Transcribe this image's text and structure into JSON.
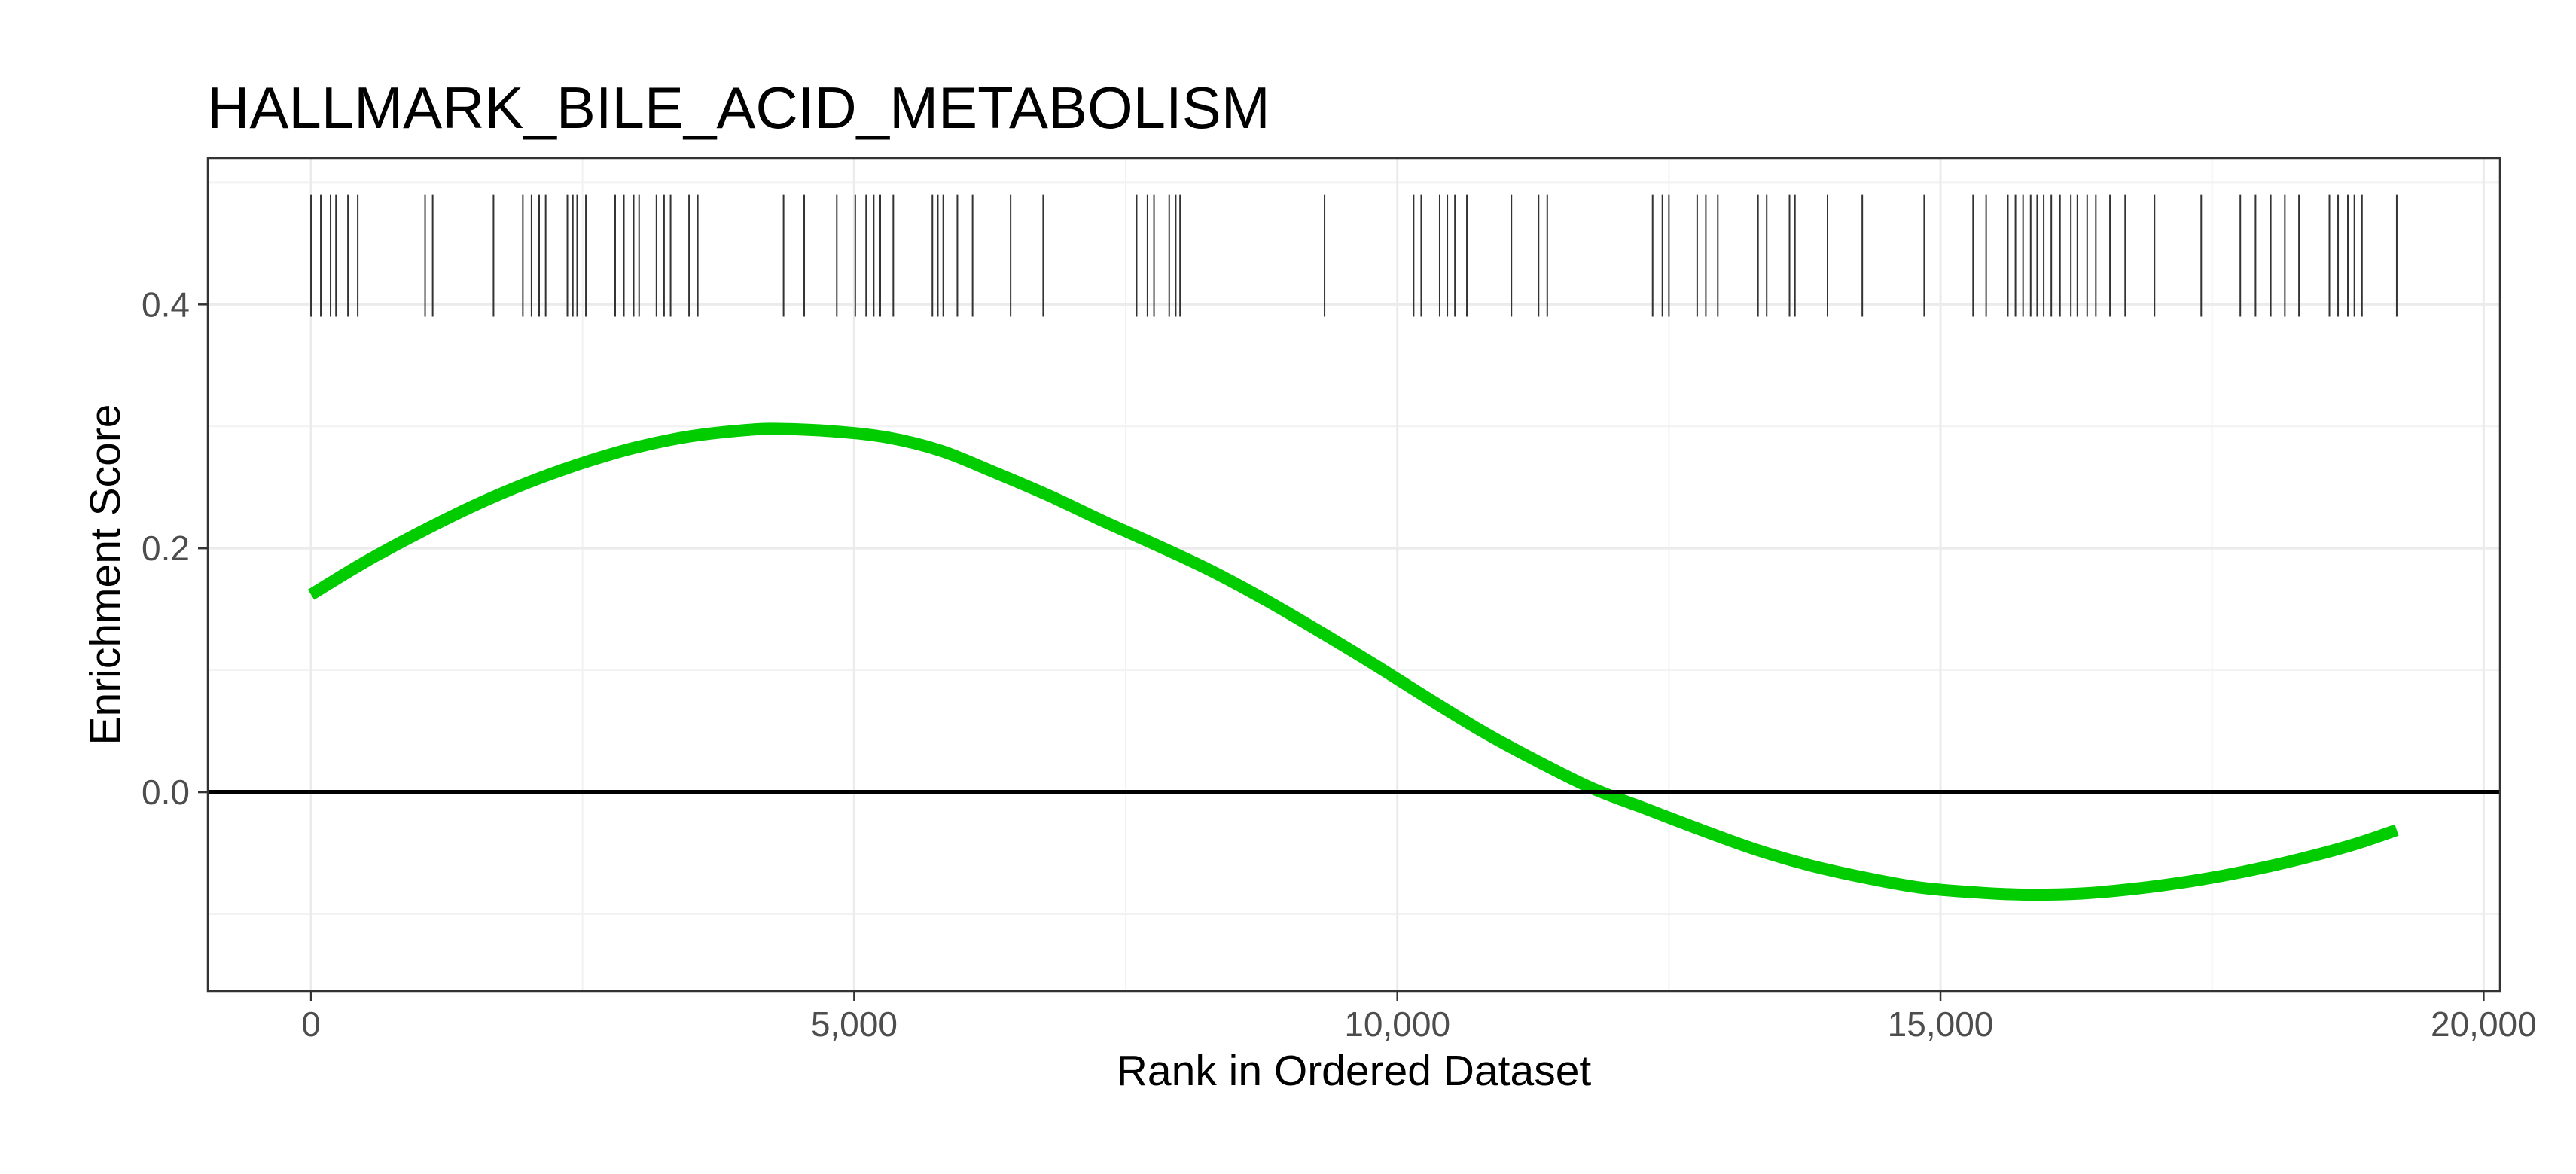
{
  "chart_data": {
    "type": "line",
    "title": "HALLMARK_BILE_ACID_METABOLISM",
    "xlabel": "Rank in Ordered Dataset",
    "ylabel": "Enrichment Score",
    "xlim": [
      -950,
      20150
    ],
    "ylim": [
      -0.163,
      0.52
    ],
    "x_ticks": [
      0,
      5000,
      10000,
      15000,
      20000
    ],
    "x_tick_labels": [
      "0",
      "5,000",
      "10,000",
      "15,000",
      "20,000"
    ],
    "y_ticks": [
      0.0,
      0.2,
      0.4
    ],
    "y_tick_labels": [
      "0.0",
      "0.2",
      "0.4"
    ],
    "grid": true,
    "zero_line": 0,
    "series": [
      {
        "color": "#00cc00",
        "x": [
          0,
          500,
          1000,
          1500,
          2000,
          2500,
          3000,
          3500,
          4000,
          4300,
          4800,
          5300,
          5800,
          6300,
          6800,
          7300,
          7800,
          8300,
          8800,
          9300,
          9800,
          10300,
          10800,
          11300,
          11800,
          12300,
          12800,
          13300,
          13800,
          14300,
          14800,
          15300,
          15800,
          16300,
          16800,
          17300,
          17800,
          18300,
          18800,
          19200
        ],
        "y": [
          0.162,
          0.189,
          0.213,
          0.235,
          0.254,
          0.27,
          0.283,
          0.292,
          0.297,
          0.298,
          0.296,
          0.291,
          0.28,
          0.262,
          0.243,
          0.222,
          0.202,
          0.181,
          0.157,
          0.131,
          0.104,
          0.076,
          0.049,
          0.025,
          0.003,
          -0.014,
          -0.031,
          -0.047,
          -0.06,
          -0.07,
          -0.078,
          -0.082,
          -0.084,
          -0.083,
          -0.079,
          -0.073,
          -0.065,
          -0.055,
          -0.043,
          -0.031
        ]
      }
    ],
    "hit_positions": [
      0,
      90,
      180,
      230,
      340,
      430,
      1050,
      1120,
      1680,
      1950,
      2030,
      2100,
      2160,
      2360,
      2410,
      2450,
      2530,
      2800,
      2880,
      2970,
      3020,
      3180,
      3250,
      3310,
      3480,
      3560,
      4350,
      4540,
      4840,
      5010,
      5110,
      5180,
      5240,
      5360,
      5720,
      5770,
      5820,
      5950,
      6090,
      6440,
      6740,
      7600,
      7700,
      7760,
      7900,
      7960,
      8000,
      9330,
      10150,
      10220,
      10390,
      10460,
      10530,
      10640,
      11050,
      11300,
      11380,
      12350,
      12440,
      12500,
      12760,
      12840,
      12950,
      13320,
      13400,
      13610,
      13660,
      13960,
      14280,
      14850,
      15300,
      15420,
      15620,
      15690,
      15760,
      15830,
      15890,
      15950,
      16020,
      16100,
      16200,
      16260,
      16350,
      16430,
      16560,
      16700,
      16970,
      17400,
      17760,
      17900,
      18040,
      18170,
      18300,
      18580,
      18660,
      18750,
      18810,
      18880,
      19200
    ]
  }
}
